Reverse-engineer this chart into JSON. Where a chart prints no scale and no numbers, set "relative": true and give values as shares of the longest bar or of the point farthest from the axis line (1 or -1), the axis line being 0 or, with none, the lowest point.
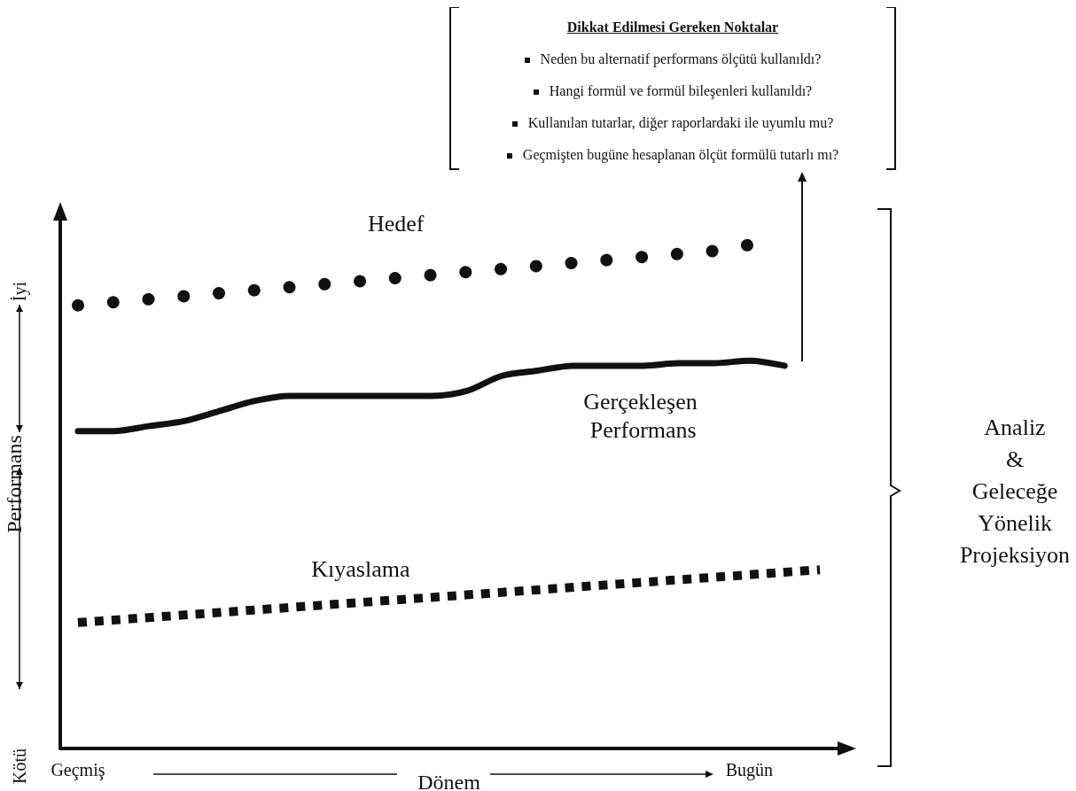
{
  "chart_data": {
    "type": "line",
    "relative": true,
    "xlabel": "Dönem",
    "ylabel": "Performans",
    "categories": [
      "Geçmiş",
      null,
      null,
      null,
      null,
      null,
      null,
      null,
      null,
      null,
      null,
      null,
      null,
      null,
      null,
      null,
      null,
      null,
      null,
      "Bugün",
      null,
      null
    ],
    "series": [
      {
        "name": "Hedef",
        "color": "#111111",
        "marker": "none",
        "line_style": "dotted",
        "values": [
          0.88,
          0.886,
          0.892,
          0.898,
          0.904,
          0.91,
          0.916,
          0.922,
          0.928,
          0.934,
          0.94,
          0.946,
          0.952,
          0.958,
          0.964,
          0.97,
          0.976,
          0.982,
          0.988,
          1,
          null,
          null
        ]
      },
      {
        "name": "Gerçekleşen Performans",
        "color": "#111111",
        "marker": "none",
        "line_style": "solid",
        "values": [
          0.63,
          0.63,
          0.64,
          0.65,
          0.67,
          0.69,
          0.7,
          0.7,
          0.7,
          0.7,
          0.7,
          0.71,
          0.74,
          0.75,
          0.76,
          0.76,
          0.76,
          0.765,
          0.765,
          0.77,
          0.76,
          null
        ]
      },
      {
        "name": "Kıyaslama",
        "color": "#111111",
        "marker": "none",
        "line_style": "dashed",
        "values": [
          0.25,
          0.255,
          0.26,
          0.265,
          0.27,
          0.275,
          0.28,
          0.285,
          0.29,
          0.295,
          0.3,
          0.305,
          0.31,
          0.315,
          0.32,
          0.325,
          0.33,
          0.335,
          0.34,
          0.345,
          0.35,
          0.355
        ]
      }
    ],
    "annotations": [
      "Kötü",
      "İyi",
      "Dikkat Edilmesi Gereken Noktalar",
      "Neden bu alternatif performans ölçütü kullanıldı?",
      "Hangi formül ve formül bileşenleri kullanıldı?",
      "Kullanılan tutarlar, diğer raporlardaki ile uyumlu mu?",
      "Geçmişten bugüne hesaplanan ölçüt formülü tutarlı mı?",
      "Analiz\n&\nGeleceğe\nYönelik\nProjeksiyon"
    ],
    "grid": false,
    "legend": false
  }
}
